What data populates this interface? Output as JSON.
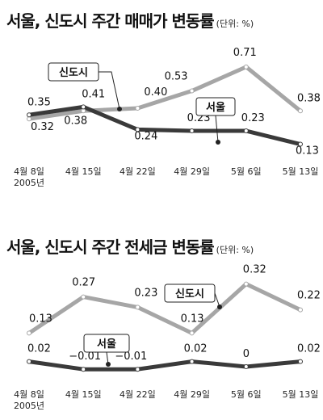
{
  "chart_data": [
    {
      "type": "line",
      "title": "서울, 신도시 주간 매매가 변동률",
      "unit_label": "(단위: %)",
      "categories": [
        "4월 8일",
        "4월 15일",
        "4월 22일",
        "4월 29일",
        "5월 6일",
        "5월 13일"
      ],
      "first_category_year": "2005년",
      "series": [
        {
          "name": "신도시",
          "color": "#a6a6a6",
          "values": [
            0.32,
            0.38,
            0.4,
            0.53,
            0.71,
            0.38
          ],
          "labels": [
            "0.32",
            "0.38",
            "0.40",
            "0.53",
            "0.71",
            "0.38"
          ]
        },
        {
          "name": "서울",
          "color": "#3a3a3a",
          "values": [
            0.35,
            0.41,
            0.24,
            0.23,
            0.23,
            0.13
          ],
          "labels": [
            "0.35",
            "0.41",
            "0.24",
            "0.23",
            "0.23",
            "0.13"
          ]
        }
      ],
      "ylim": [
        0.0,
        0.8
      ],
      "grid": false
    },
    {
      "type": "line",
      "title": "서울, 신도시 주간 전세금 변동률",
      "unit_label": "(단위: %)",
      "categories": [
        "4월 8일",
        "4월 15일",
        "4월 22일",
        "4월 29일",
        "5월 6일",
        "5월 13일"
      ],
      "first_category_year": "2005년",
      "series": [
        {
          "name": "신도시",
          "color": "#a6a6a6",
          "values": [
            0.13,
            0.27,
            0.23,
            0.13,
            0.32,
            0.22
          ],
          "labels": [
            "0.13",
            "0.27",
            "0.23",
            "0.13",
            "0.32",
            "0.22"
          ]
        },
        {
          "name": "서울",
          "color": "#3a3a3a",
          "values": [
            0.02,
            -0.01,
            -0.01,
            0.02,
            0,
            0.02
          ],
          "labels": [
            "0.02",
            "−0.01",
            "−0.01",
            "0.02",
            "0",
            "0.02"
          ]
        }
      ],
      "ylim": [
        -0.05,
        0.35
      ],
      "grid": false
    }
  ]
}
